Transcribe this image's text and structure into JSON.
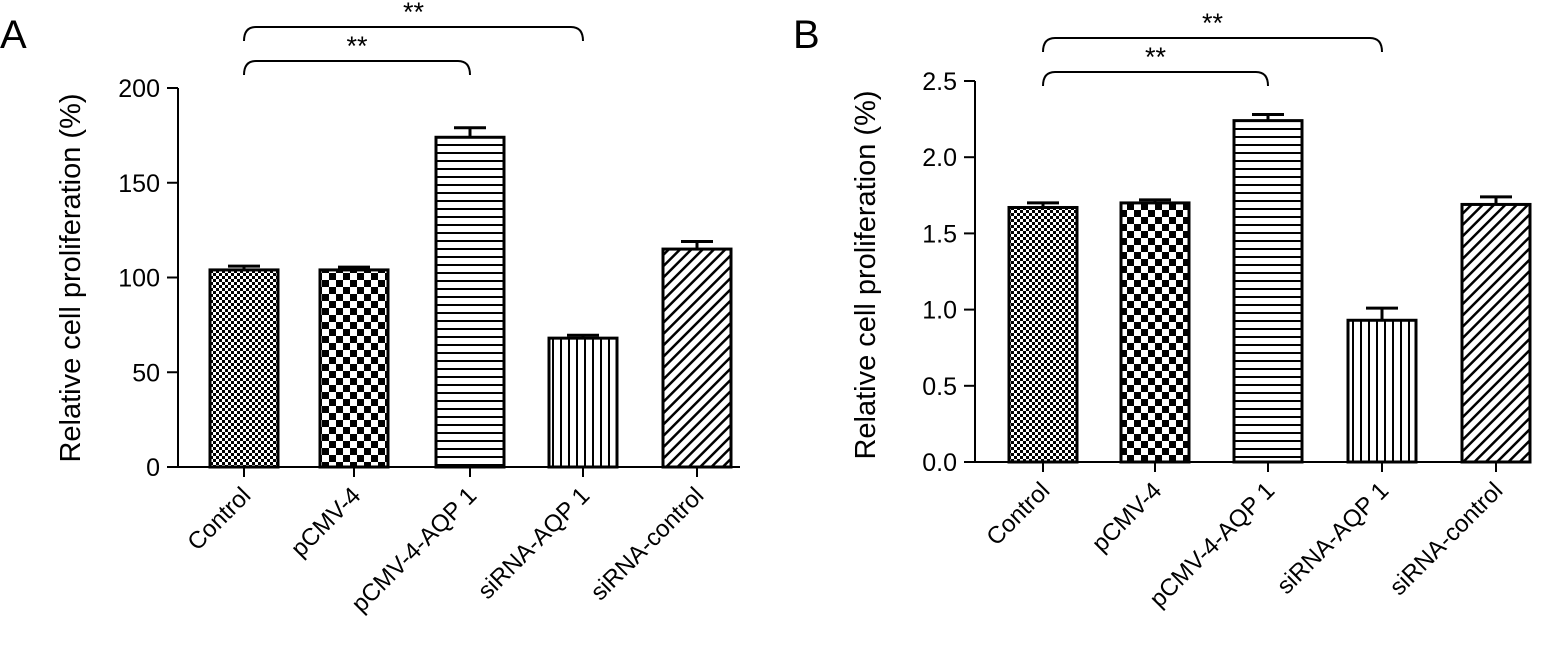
{
  "chart_data": [
    {
      "type": "bar",
      "panel": "A",
      "categories": [
        "Control",
        "pCMV-4",
        "pCMV-4-AQP 1",
        "siRNA-AQP 1",
        "siRNA-control"
      ],
      "values": [
        104,
        104,
        174,
        68,
        115
      ],
      "errors": [
        2,
        1.5,
        5,
        1.5,
        4
      ],
      "patterns": [
        "fine-check",
        "checker",
        "horizontal",
        "vertical",
        "diagonal"
      ],
      "title": "",
      "xlabel": "",
      "ylabel": "Relative cell proliferation (%)",
      "ylim": [
        0,
        200
      ],
      "yticks": [
        0,
        50,
        100,
        150,
        200
      ],
      "ytick_labels": [
        "0",
        "50",
        "100",
        "150",
        "200"
      ],
      "grid": false,
      "significance": [
        {
          "from": 0,
          "to": 2,
          "label": "**"
        },
        {
          "from": 0,
          "to": 3,
          "label": "**"
        }
      ]
    },
    {
      "type": "bar",
      "panel": "B",
      "categories": [
        "Control",
        "pCMV-4",
        "pCMV-4-AQP 1",
        "siRNA-AQP 1",
        "siRNA-control"
      ],
      "values": [
        1.67,
        1.7,
        2.24,
        0.93,
        1.69
      ],
      "errors": [
        0.03,
        0.02,
        0.04,
        0.08,
        0.05
      ],
      "patterns": [
        "fine-check",
        "checker",
        "horizontal",
        "vertical",
        "diagonal"
      ],
      "title": "",
      "xlabel": "",
      "ylabel": "Relative cell proliferation (%)",
      "ylim": [
        0,
        2.5
      ],
      "yticks": [
        0,
        0.5,
        1.0,
        1.5,
        2.0,
        2.5
      ],
      "ytick_labels": [
        "0.0",
        "0.5",
        "1.0",
        "1.5",
        "2.0",
        "2.5"
      ],
      "grid": false,
      "significance": [
        {
          "from": 0,
          "to": 2,
          "label": "**"
        },
        {
          "from": 0,
          "to": 3,
          "label": "**"
        }
      ]
    }
  ]
}
